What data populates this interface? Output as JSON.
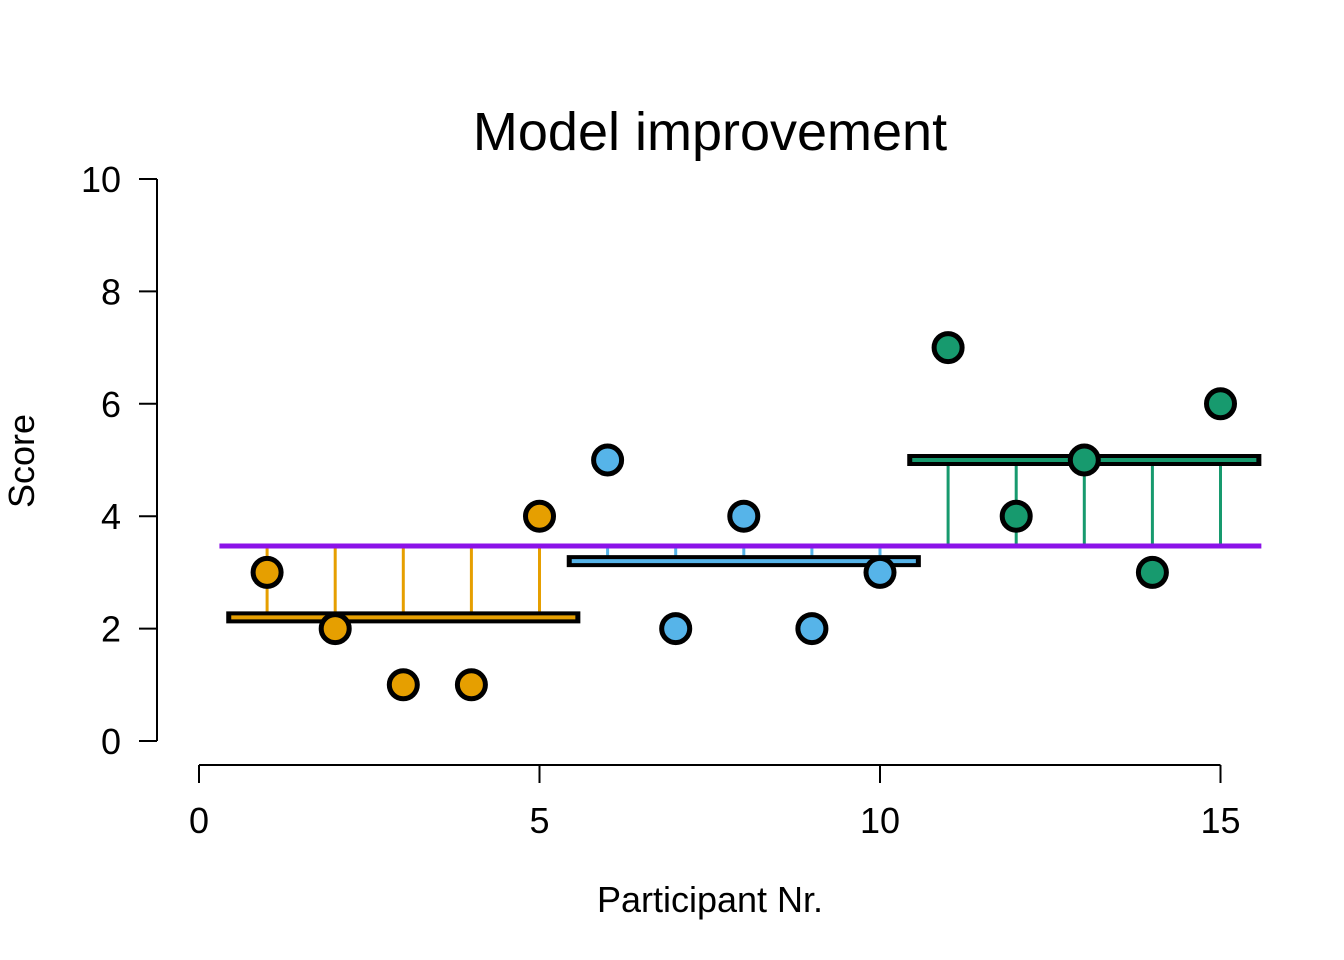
{
  "chart_data": {
    "type": "scatter",
    "title": "Model improvement",
    "xlabel": "Participant Nr.",
    "ylabel": "Score",
    "xlim": [
      0,
      16
    ],
    "ylim": [
      0,
      10
    ],
    "xticks": [
      "0",
      "5",
      "10",
      "15"
    ],
    "yticks": [
      "0",
      "2",
      "4",
      "6",
      "8",
      "10"
    ],
    "grand_mean": 3.47,
    "grid": false,
    "colors": {
      "grand_mean": "#8B12E8",
      "edges": "#000000"
    },
    "groups": [
      {
        "color": "#E69F00",
        "mean": 2.2,
        "x": [
          1,
          2,
          3,
          4,
          5
        ],
        "y": [
          3,
          2,
          1,
          1,
          4
        ]
      },
      {
        "color": "#56B4E9",
        "mean": 3.2,
        "x": [
          6,
          7,
          8,
          9,
          10
        ],
        "y": [
          5,
          2,
          4,
          2,
          3
        ]
      },
      {
        "color": "#179A6E",
        "mean": 5.0,
        "x": [
          11,
          12,
          13,
          14,
          15
        ],
        "y": [
          7,
          4,
          5,
          3,
          6
        ]
      }
    ]
  }
}
